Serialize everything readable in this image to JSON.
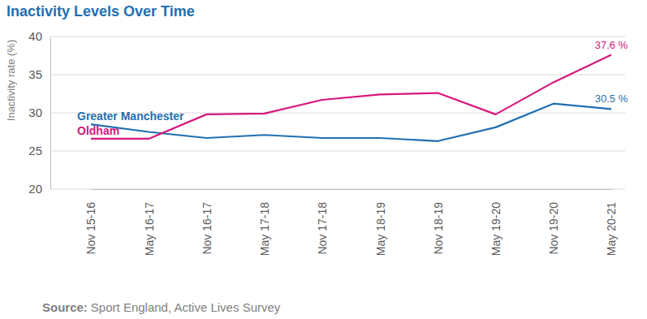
{
  "chart_data": {
    "type": "line",
    "title": "Inactivity Levels Over Time",
    "y_label": "Inactivity rate (%)",
    "categories": [
      "Nov 15-16",
      "May 16-17",
      "Nov 16-17",
      "May 17-18",
      "Nov 17-18",
      "May 18-19",
      "Nov 18-19",
      "May 19-20",
      "Nov 19-20",
      "May 20-21"
    ],
    "series": [
      {
        "name": "Greater Manchester",
        "color": "#1f6fb2",
        "values": [
          28.5,
          27.5,
          26.7,
          27.1,
          26.7,
          26.7,
          26.3,
          28.1,
          31.2,
          30.5
        ],
        "value_labels": [
          null,
          null,
          null,
          null,
          null,
          null,
          null,
          null,
          null,
          "30.5 %"
        ]
      },
      {
        "name": "Oldham",
        "color": "#d6177d",
        "values": [
          26.6,
          26.6,
          29.8,
          29.9,
          31.7,
          32.4,
          32.6,
          29.8,
          34.0,
          37.6
        ],
        "value_labels": [
          null,
          null,
          null,
          null,
          null,
          null,
          null,
          null,
          null,
          "37.6 %"
        ]
      }
    ],
    "ylim": [
      20,
      40
    ],
    "yticks": [
      20,
      25,
      30,
      35,
      40
    ],
    "grid": true,
    "source": {
      "label": "Source:",
      "text": "Sport England, Active Lives Survey"
    }
  }
}
